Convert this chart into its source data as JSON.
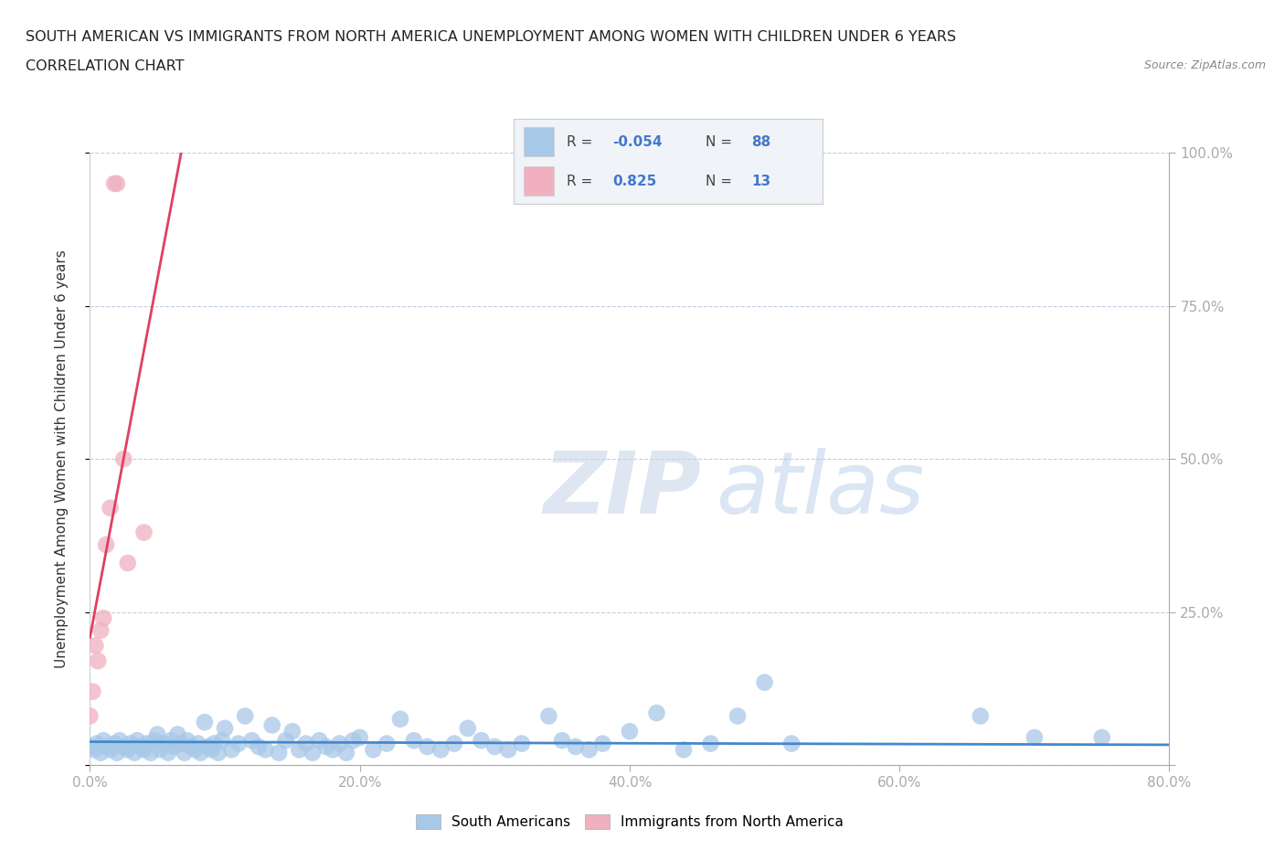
{
  "title_line1": "SOUTH AMERICAN VS IMMIGRANTS FROM NORTH AMERICA UNEMPLOYMENT AMONG WOMEN WITH CHILDREN UNDER 6 YEARS",
  "title_line2": "CORRELATION CHART",
  "source": "Source: ZipAtlas.com",
  "ylabel": "Unemployment Among Women with Children Under 6 years",
  "xlim": [
    0,
    0.8
  ],
  "ylim": [
    0,
    1.0
  ],
  "xticks": [
    0.0,
    0.2,
    0.4,
    0.6,
    0.8
  ],
  "xticklabels": [
    "0.0%",
    "20.0%",
    "40.0%",
    "60.0%",
    "80.0%"
  ],
  "yticks": [
    0.0,
    0.25,
    0.5,
    0.75,
    1.0
  ],
  "yticklabels_right": [
    "",
    "25.0%",
    "50.0%",
    "75.0%",
    "100.0%"
  ],
  "blue_R": -0.054,
  "blue_N": 88,
  "pink_R": 0.825,
  "pink_N": 13,
  "blue_color": "#a8c8e8",
  "pink_color": "#f0b0c0",
  "blue_line_color": "#4488cc",
  "pink_line_color": "#e04060",
  "watermark_zip": "ZIP",
  "watermark_atlas": "atlas",
  "background_color": "#ffffff",
  "grid_color": "#c0d0e0",
  "legend_bg": "#f0f4f8",
  "legend_border": "#cccccc",
  "blue_scatter_x": [
    0.0,
    0.003,
    0.005,
    0.008,
    0.01,
    0.012,
    0.015,
    0.018,
    0.02,
    0.022,
    0.025,
    0.028,
    0.03,
    0.033,
    0.035,
    0.038,
    0.04,
    0.042,
    0.045,
    0.048,
    0.05,
    0.052,
    0.055,
    0.058,
    0.06,
    0.062,
    0.065,
    0.068,
    0.07,
    0.072,
    0.075,
    0.078,
    0.08,
    0.082,
    0.085,
    0.088,
    0.09,
    0.092,
    0.095,
    0.098,
    0.1,
    0.105,
    0.11,
    0.115,
    0.12,
    0.125,
    0.13,
    0.135,
    0.14,
    0.145,
    0.15,
    0.155,
    0.16,
    0.165,
    0.17,
    0.175,
    0.18,
    0.185,
    0.19,
    0.195,
    0.2,
    0.21,
    0.22,
    0.23,
    0.24,
    0.25,
    0.26,
    0.27,
    0.28,
    0.29,
    0.3,
    0.31,
    0.32,
    0.34,
    0.35,
    0.36,
    0.37,
    0.38,
    0.4,
    0.42,
    0.44,
    0.46,
    0.48,
    0.5,
    0.52,
    0.66,
    0.7,
    0.75
  ],
  "blue_scatter_y": [
    0.03,
    0.025,
    0.035,
    0.02,
    0.04,
    0.03,
    0.025,
    0.035,
    0.02,
    0.04,
    0.03,
    0.025,
    0.035,
    0.02,
    0.04,
    0.03,
    0.025,
    0.035,
    0.02,
    0.04,
    0.05,
    0.025,
    0.035,
    0.02,
    0.04,
    0.03,
    0.05,
    0.035,
    0.02,
    0.04,
    0.03,
    0.025,
    0.035,
    0.02,
    0.07,
    0.03,
    0.025,
    0.035,
    0.02,
    0.04,
    0.06,
    0.025,
    0.035,
    0.08,
    0.04,
    0.03,
    0.025,
    0.065,
    0.02,
    0.04,
    0.055,
    0.025,
    0.035,
    0.02,
    0.04,
    0.03,
    0.025,
    0.035,
    0.02,
    0.04,
    0.045,
    0.025,
    0.035,
    0.075,
    0.04,
    0.03,
    0.025,
    0.035,
    0.06,
    0.04,
    0.03,
    0.025,
    0.035,
    0.08,
    0.04,
    0.03,
    0.025,
    0.035,
    0.055,
    0.085,
    0.025,
    0.035,
    0.08,
    0.135,
    0.035,
    0.08,
    0.045,
    0.045
  ],
  "pink_scatter_x": [
    0.0,
    0.002,
    0.004,
    0.006,
    0.008,
    0.01,
    0.012,
    0.015,
    0.018,
    0.02,
    0.025,
    0.028,
    0.04
  ],
  "pink_scatter_y": [
    0.08,
    0.12,
    0.195,
    0.17,
    0.22,
    0.24,
    0.36,
    0.42,
    0.95,
    0.95,
    0.5,
    0.33,
    0.38
  ]
}
